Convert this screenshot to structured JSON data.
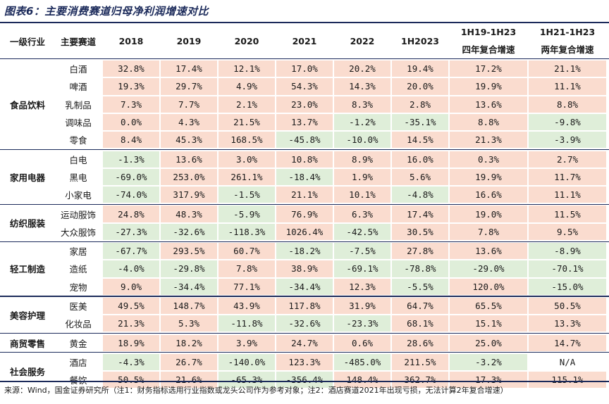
{
  "title": "图表6：主要消费赛道归母净利润增速对比",
  "headers": {
    "level1": "一级行业",
    "track": "主要赛道",
    "years": [
      "2018",
      "2019",
      "2020",
      "2021",
      "2022",
      "1H2023"
    ],
    "cagr4_line1": "1H19-1H23",
    "cagr4_line2": "四年复合增速",
    "cagr2_line1": "1H21-1H23",
    "cagr2_line2": "两年复合增速"
  },
  "groups": [
    {
      "name": "食品饮料",
      "rows": [
        {
          "track": "白酒",
          "values": [
            "32.8%",
            "17.4%",
            "12.1%",
            "17.0%",
            "20.2%",
            "19.4%",
            "17.2%",
            "21.1%"
          ]
        },
        {
          "track": "啤酒",
          "values": [
            "19.3%",
            "29.7%",
            "4.9%",
            "54.3%",
            "14.3%",
            "20.0%",
            "19.9%",
            "11.1%"
          ]
        },
        {
          "track": "乳制品",
          "values": [
            "7.3%",
            "7.7%",
            "2.1%",
            "23.0%",
            "8.3%",
            "2.8%",
            "13.6%",
            "8.8%"
          ]
        },
        {
          "track": "调味品",
          "values": [
            "0.0%",
            "4.3%",
            "21.5%",
            "13.7%",
            "-1.2%",
            "-35.1%",
            "8.8%",
            "-9.8%"
          ]
        },
        {
          "track": "零食",
          "values": [
            "8.4%",
            "45.3%",
            "168.5%",
            "-45.8%",
            "-10.0%",
            "14.5%",
            "21.3%",
            "-3.9%"
          ]
        }
      ]
    },
    {
      "name": "家用电器",
      "rows": [
        {
          "track": "白电",
          "values": [
            "-1.3%",
            "13.6%",
            "3.0%",
            "10.8%",
            "8.9%",
            "16.0%",
            "0.3%",
            "2.7%"
          ]
        },
        {
          "track": "黑电",
          "values": [
            "-69.0%",
            "253.0%",
            "261.1%",
            "-18.4%",
            "1.9%",
            "5.6%",
            "19.9%",
            "11.7%"
          ]
        },
        {
          "track": "小家电",
          "values": [
            "-74.0%",
            "317.9%",
            "-1.5%",
            "21.1%",
            "10.1%",
            "-4.8%",
            "16.6%",
            "11.1%"
          ]
        }
      ]
    },
    {
      "name": "纺织服装",
      "rows": [
        {
          "track": "运动服饰",
          "values": [
            "24.8%",
            "48.3%",
            "-5.9%",
            "76.9%",
            "6.3%",
            "17.4%",
            "19.0%",
            "11.5%"
          ]
        },
        {
          "track": "大众服饰",
          "values": [
            "-27.3%",
            "-32.6%",
            "-118.3%",
            "1026.4%",
            "-42.5%",
            "30.5%",
            "7.8%",
            "9.5%"
          ]
        }
      ]
    },
    {
      "name": "轻工制造",
      "rows": [
        {
          "track": "家居",
          "values": [
            "-67.7%",
            "293.5%",
            "60.7%",
            "-18.2%",
            "-7.5%",
            "27.8%",
            "13.6%",
            "-8.9%"
          ]
        },
        {
          "track": "造纸",
          "values": [
            "-4.0%",
            "-29.8%",
            "7.8%",
            "38.9%",
            "-69.1%",
            "-78.8%",
            "-29.0%",
            "-70.1%"
          ]
        },
        {
          "track": "宠物",
          "values": [
            "9.0%",
            "-34.4%",
            "77.1%",
            "-34.4%",
            "12.3%",
            "-5.5%",
            "120.0%",
            "-15.0%"
          ]
        }
      ]
    },
    {
      "name": "美容护理",
      "rows": [
        {
          "track": "医美",
          "values": [
            "49.5%",
            "148.7%",
            "43.9%",
            "117.8%",
            "31.9%",
            "64.7%",
            "65.5%",
            "50.5%"
          ]
        },
        {
          "track": "化妆品",
          "values": [
            "21.3%",
            "5.3%",
            "-11.8%",
            "-32.6%",
            "-23.3%",
            "68.1%",
            "15.1%",
            "13.3%"
          ]
        }
      ]
    },
    {
      "name": "商贸零售",
      "rows": [
        {
          "track": "黄金",
          "values": [
            "18.9%",
            "18.2%",
            "3.9%",
            "24.7%",
            "0.6%",
            "28.6%",
            "25.0%",
            "14.7%"
          ]
        }
      ]
    },
    {
      "name": "社会服务",
      "rows": [
        {
          "track": "酒店",
          "values": [
            "-4.3%",
            "26.7%",
            "-140.0%",
            "123.3%",
            "-485.0%",
            "211.5%",
            "-3.2%",
            "N/A"
          ]
        },
        {
          "track": "餐饮",
          "values": [
            "50.5%",
            "21.6%",
            "-65.3%",
            "-356.4%",
            "148.4%",
            "362.7%",
            "17.3%",
            "115.1%"
          ]
        }
      ]
    }
  ],
  "colors": {
    "positive": "#fadccf",
    "negative": "#dfeed9",
    "rule": "#1b2a5a"
  },
  "source": "来源：Wind，国金证券研究所（注1：财务指标选用行业指数或龙头公司作为参考对象；注2：酒店赛道2021年出现亏损，无法计算2年复合增速）"
}
